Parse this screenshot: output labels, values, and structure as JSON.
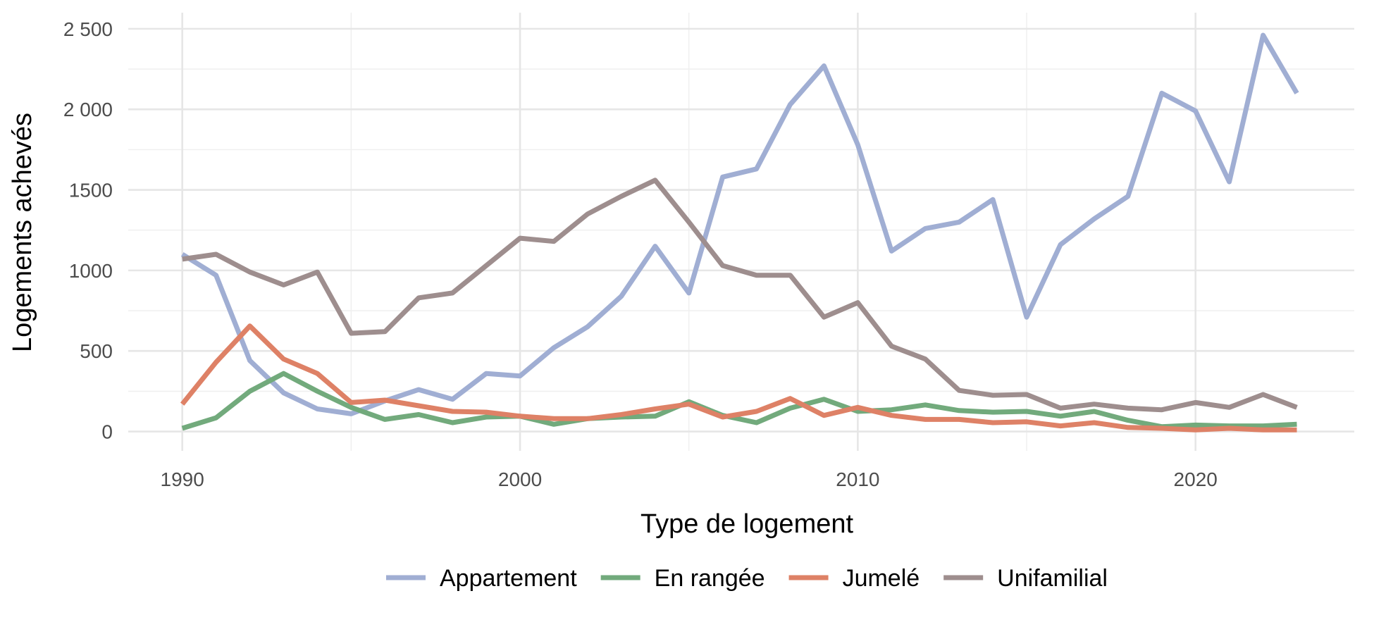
{
  "chart_data": {
    "type": "line",
    "title": "",
    "xlabel": "Type de logement",
    "ylabel": "Logements achevés",
    "xlim": [
      1988.4,
      2024.7
    ],
    "ylim": [
      -120,
      2600
    ],
    "x_ticks": [
      1990,
      2000,
      2010,
      2020
    ],
    "x_tick_labels": [
      "1990",
      "2000",
      "2010",
      "2020"
    ],
    "x_minor_ticks": [
      1995,
      2005,
      2015
    ],
    "y_ticks": [
      0,
      500,
      1000,
      1500,
      2000,
      2500
    ],
    "y_tick_labels": [
      "0",
      "500",
      "1000",
      "1500",
      "2 000",
      "2 500"
    ],
    "y_minor_ticks": [
      250,
      750,
      1250,
      1750,
      2250
    ],
    "grid": true,
    "legend_position": "bottom",
    "x": [
      1990,
      1991,
      1992,
      1993,
      1994,
      1995,
      1996,
      1997,
      1998,
      1999,
      2000,
      2001,
      2002,
      2003,
      2004,
      2005,
      2006,
      2007,
      2008,
      2009,
      2010,
      2011,
      2012,
      2013,
      2014,
      2015,
      2016,
      2017,
      2018,
      2019,
      2020,
      2021,
      2022,
      2023
    ],
    "series": [
      {
        "name": "Appartement",
        "color": "#a0aed3",
        "values": [
          1100,
          970,
          440,
          240,
          140,
          110,
          190,
          260,
          200,
          360,
          345,
          520,
          650,
          840,
          1150,
          860,
          1580,
          1630,
          2030,
          2270,
          1780,
          1120,
          1260,
          1300,
          1440,
          710,
          1160,
          1320,
          1460,
          2100,
          1990,
          1550,
          2460,
          2100
        ]
      },
      {
        "name": "En rangée",
        "color": "#72aa7c",
        "values": [
          20,
          85,
          250,
          360,
          250,
          150,
          75,
          105,
          55,
          90,
          95,
          45,
          80,
          90,
          95,
          185,
          100,
          55,
          145,
          200,
          125,
          135,
          165,
          130,
          120,
          125,
          95,
          125,
          70,
          30,
          40,
          35,
          35,
          45
        ]
      },
      {
        "name": "Jumelé",
        "color": "#de8166",
        "values": [
          170,
          430,
          655,
          450,
          360,
          180,
          195,
          160,
          125,
          120,
          95,
          80,
          80,
          105,
          140,
          170,
          90,
          125,
          205,
          100,
          150,
          100,
          75,
          75,
          55,
          60,
          35,
          55,
          25,
          20,
          10,
          20,
          10,
          10
        ]
      },
      {
        "name": "Unifamilial",
        "color": "#9e8e8e",
        "values": [
          1070,
          1100,
          990,
          910,
          990,
          610,
          620,
          830,
          860,
          1030,
          1200,
          1180,
          1350,
          1460,
          1560,
          1300,
          1030,
          970,
          970,
          710,
          800,
          530,
          450,
          255,
          225,
          230,
          145,
          170,
          145,
          135,
          180,
          150,
          230,
          150
        ]
      }
    ]
  }
}
